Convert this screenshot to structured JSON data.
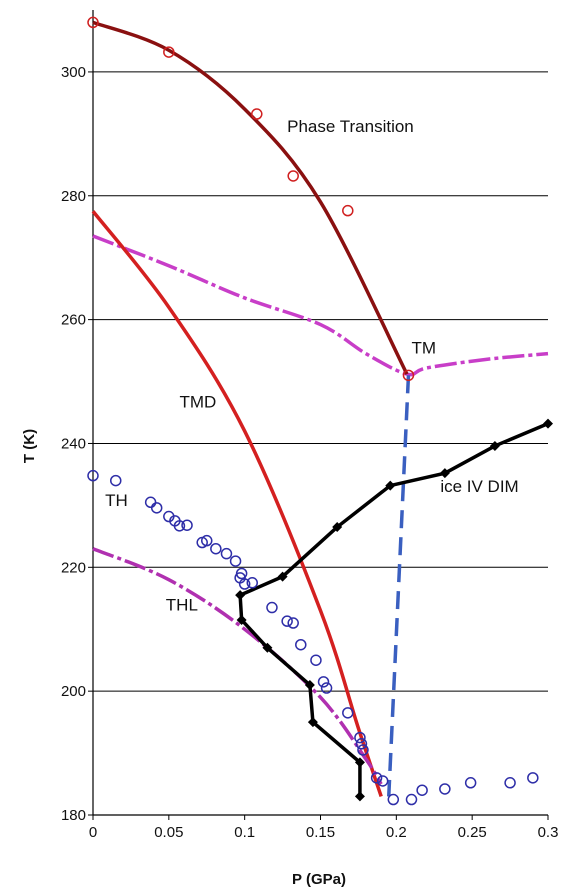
{
  "colors": {
    "phase_transition": "#8a1010",
    "tmd": "#d42020",
    "tm": "#c83ec8",
    "thl": "#b030b0",
    "ice_iv_dim": "#000000",
    "th": "#2e2ea8",
    "dashed_blue": "#3a5fc0",
    "grid": "#000000"
  },
  "chart_data": {
    "type": "line",
    "title": "",
    "xlabel": "P (GPa)",
    "ylabel": "T (K)",
    "xlim": [
      0,
      0.3
    ],
    "ylim": [
      180,
      310
    ],
    "x_ticks": [
      "0",
      "0.05",
      "0.1",
      "0.15",
      "0.2",
      "0.25",
      "0.3"
    ],
    "y_ticks": [
      "180",
      "200",
      "220",
      "240",
      "260",
      "280",
      "300"
    ],
    "grid": "horizontal",
    "legend": "none",
    "annotations": [
      {
        "text": "Phase Transition",
        "x": 0.128,
        "y": 290.3
      },
      {
        "text": "TM",
        "x": 0.21,
        "y": 254.5
      },
      {
        "text": "TMD",
        "x": 0.057,
        "y": 245.8
      },
      {
        "text": "TH",
        "x": 0.008,
        "y": 229.9
      },
      {
        "text": "ice IV DIM",
        "x": 0.229,
        "y": 232.2
      },
      {
        "text": "THL",
        "x": 0.048,
        "y": 213.0
      }
    ],
    "series": [
      {
        "id": "phase_transition_curve",
        "style": "solid",
        "x": [
          0,
          0.05,
          0.1,
          0.15,
          0.207
        ],
        "y": [
          308,
          303.5,
          294,
          279,
          251.2
        ]
      },
      {
        "id": "phase_transition_points",
        "style": "open-circle",
        "x": [
          0,
          0.05,
          0.108,
          0.132,
          0.168,
          0.208
        ],
        "y": [
          308,
          303.2,
          293.2,
          283.2,
          277.6,
          251
        ]
      },
      {
        "id": "tm_curve",
        "style": "dash-dot",
        "x": [
          0,
          0.05,
          0.1,
          0.15,
          0.18,
          0.207,
          0.22,
          0.26,
          0.3
        ],
        "y": [
          273.5,
          268.7,
          263.5,
          259.2,
          254.5,
          251.2,
          252.2,
          253.6,
          254.5
        ]
      },
      {
        "id": "tmd_curve",
        "style": "solid",
        "x": [
          0,
          0.05,
          0.1,
          0.15,
          0.175,
          0.19
        ],
        "y": [
          277.5,
          262,
          242,
          213,
          194,
          183
        ]
      },
      {
        "id": "thl_curve",
        "style": "dash-dot",
        "x": [
          0,
          0.05,
          0.1,
          0.15,
          0.18,
          0.19
        ],
        "y": [
          223,
          218,
          210,
          199,
          189,
          185
        ]
      },
      {
        "id": "ice_iv_dim",
        "style": "solid-marker",
        "x": [
          0.176,
          0.176,
          0.145,
          0.143,
          0.115,
          0.098,
          0.097,
          0.125,
          0.161,
          0.196,
          0.232,
          0.265,
          0.3
        ],
        "y": [
          183,
          188.5,
          195,
          201,
          207,
          211.5,
          215.5,
          218.5,
          226.5,
          233.2,
          235.2,
          239.6,
          243.2
        ]
      },
      {
        "id": "th_points",
        "style": "open-circle",
        "x": [
          0,
          0.015,
          0.038,
          0.042,
          0.05,
          0.054,
          0.057,
          0.062,
          0.072,
          0.075,
          0.081,
          0.088,
          0.094,
          0.098,
          0.1,
          0.097,
          0.105,
          0.118,
          0.128,
          0.132,
          0.137,
          0.147,
          0.152,
          0.154,
          0.168,
          0.176,
          0.177,
          0.178,
          0.187,
          0.191,
          0.198,
          0.21,
          0.217,
          0.232,
          0.249,
          0.275,
          0.29
        ],
        "y": [
          234.8,
          234,
          230.5,
          229.6,
          228.2,
          227.5,
          226.7,
          226.8,
          224,
          224.3,
          223,
          222.2,
          221,
          219,
          217.3,
          218.3,
          217.5,
          213.5,
          211.3,
          211,
          207.5,
          205,
          201.5,
          200.5,
          196.5,
          192.5,
          191.5,
          190.5,
          186,
          185.5,
          182.5,
          182.5,
          184,
          184.2,
          185.2,
          185.2,
          186
        ]
      },
      {
        "id": "dashed_connector",
        "style": "dashed",
        "x": [
          0.208,
          0.195
        ],
        "y": [
          251,
          183
        ]
      }
    ]
  }
}
